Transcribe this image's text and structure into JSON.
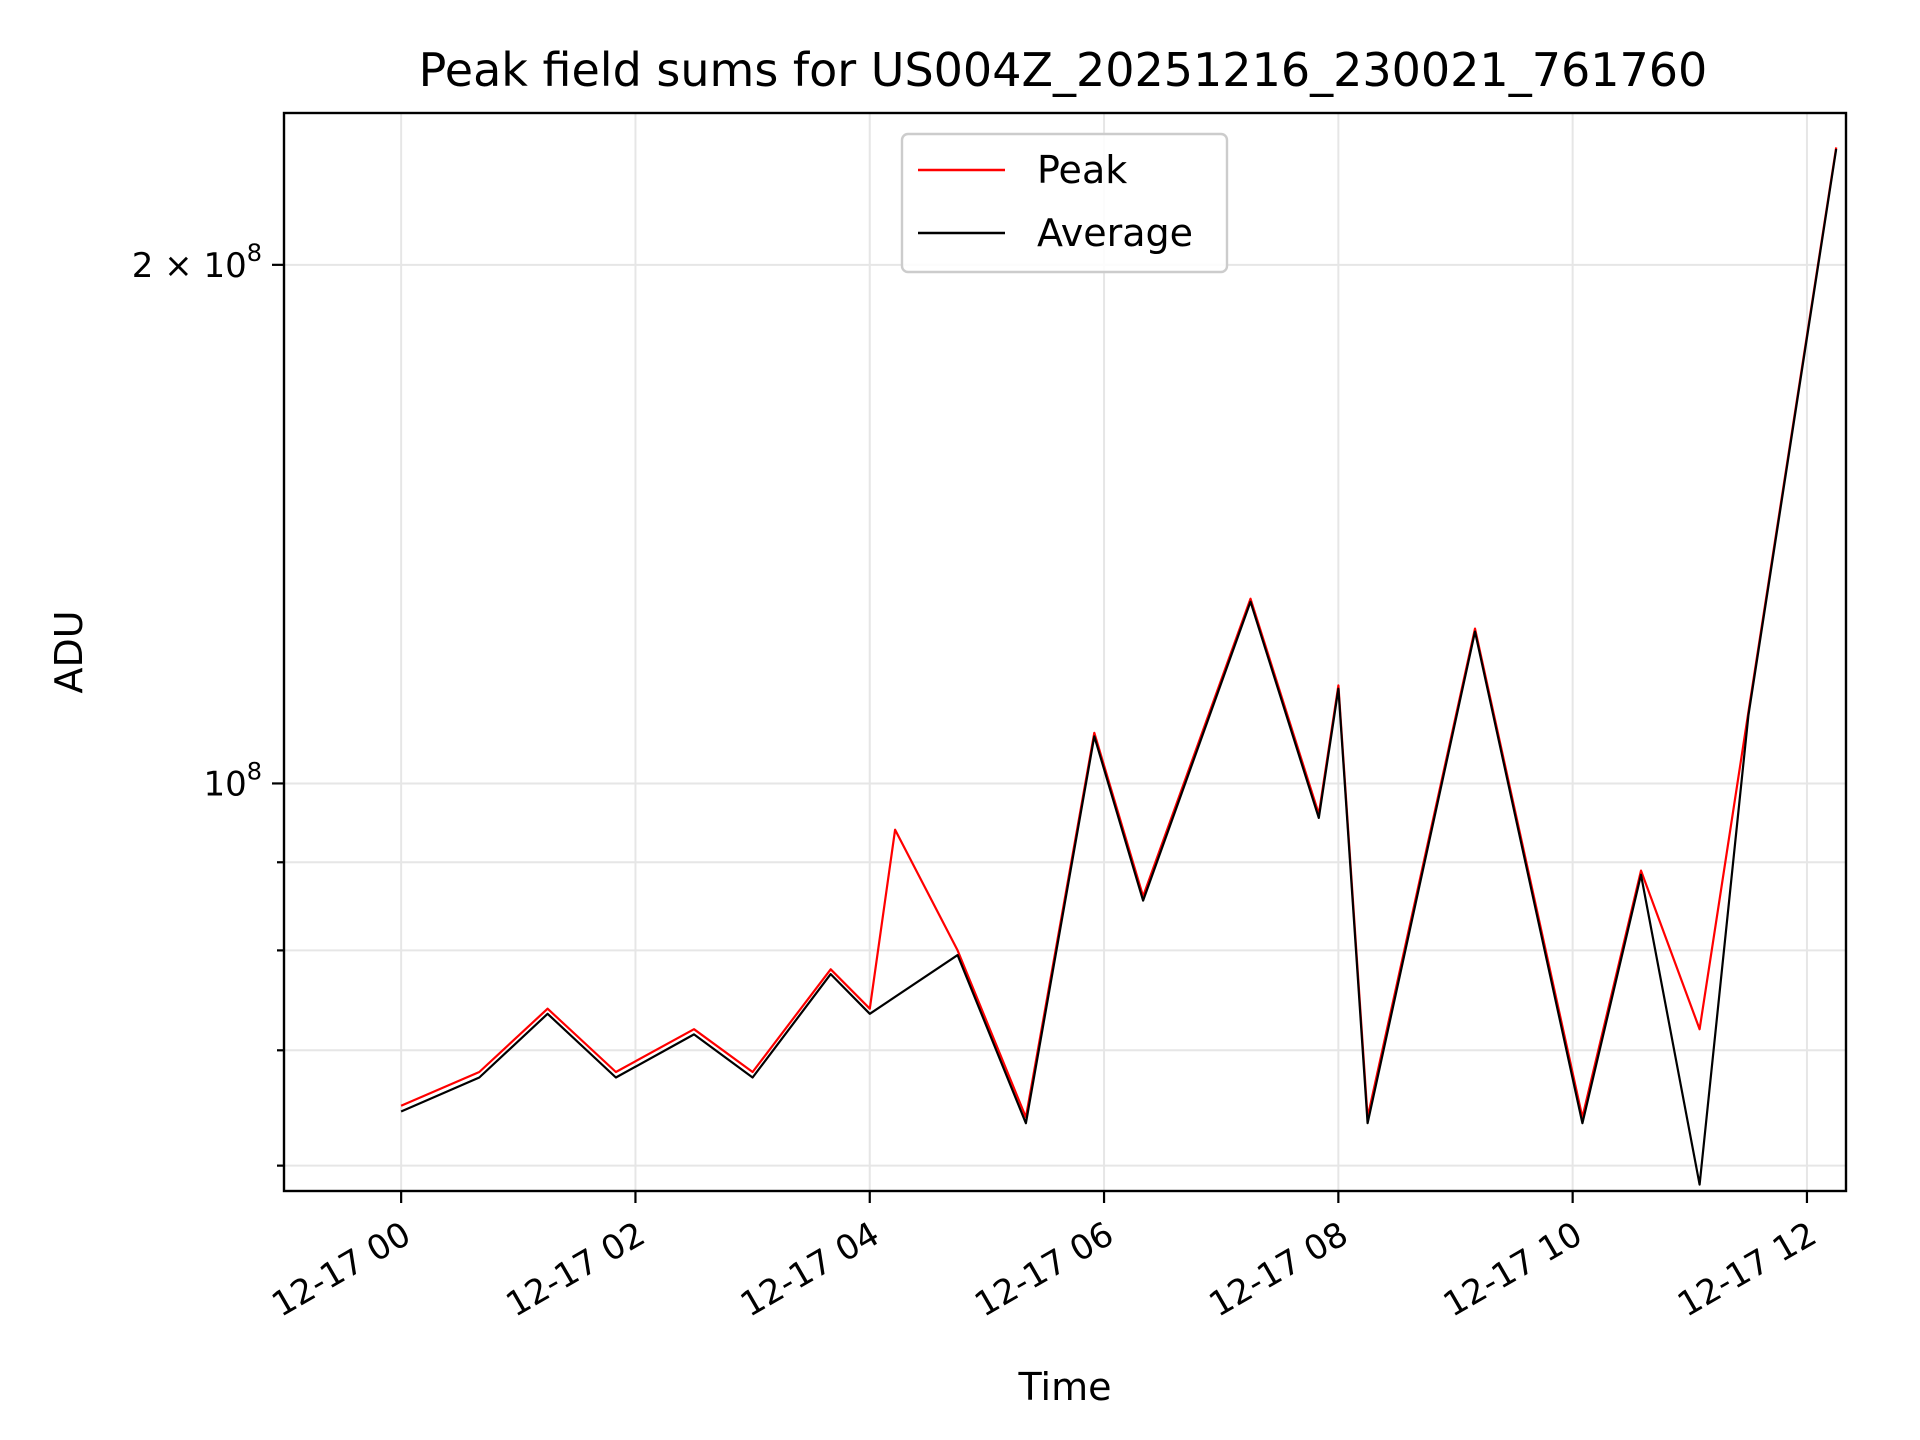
{
  "chart_data": {
    "type": "line",
    "title": "Peak field sums for US004Z_20251216_230021_761760",
    "xlabel": "Time",
    "ylabel": "ADU",
    "y_scale": "log",
    "grid": true,
    "legend_position": "upper-center",
    "x_domain": [
      "2025-12-16 23:00",
      "2025-12-17 12:20"
    ],
    "ylim": [
      58000000,
      245000000
    ],
    "x_ticks": [
      {
        "time": "2025-12-17 00:00",
        "label": "12-17 00"
      },
      {
        "time": "2025-12-17 02:00",
        "label": "12-17 02"
      },
      {
        "time": "2025-12-17 04:00",
        "label": "12-17 04"
      },
      {
        "time": "2025-12-17 06:00",
        "label": "12-17 06"
      },
      {
        "time": "2025-12-17 08:00",
        "label": "12-17 08"
      },
      {
        "time": "2025-12-17 10:00",
        "label": "12-17 10"
      },
      {
        "time": "2025-12-17 12:00",
        "label": "12-17 12"
      }
    ],
    "y_major_ticks": [
      {
        "value": 100000000,
        "base": "10",
        "exp": "8"
      },
      {
        "value": 200000000,
        "base": "2 × 10",
        "exp": "8"
      }
    ],
    "y_minor_ticks": [
      60000000,
      70000000,
      80000000,
      90000000
    ],
    "series": [
      {
        "name": "Peak",
        "color": "#ff0000",
        "points": [
          [
            "2025-12-17 00:00",
            65000000
          ],
          [
            "2025-12-17 00:40",
            68000000
          ],
          [
            "2025-12-17 01:15",
            74000000
          ],
          [
            "2025-12-17 01:50",
            68000000
          ],
          [
            "2025-12-17 02:30",
            72000000
          ],
          [
            "2025-12-17 03:00",
            68000000
          ],
          [
            "2025-12-17 03:40",
            78000000
          ],
          [
            "2025-12-17 04:00",
            74000000
          ],
          [
            "2025-12-17 04:13",
            94000000
          ],
          [
            "2025-12-17 04:45",
            80000000
          ],
          [
            "2025-12-17 05:20",
            64000000
          ],
          [
            "2025-12-17 05:55",
            107000000
          ],
          [
            "2025-12-17 06:20",
            86000000
          ],
          [
            "2025-12-17 07:15",
            128000000
          ],
          [
            "2025-12-17 07:50",
            96000000
          ],
          [
            "2025-12-17 08:00",
            114000000
          ],
          [
            "2025-12-17 08:15",
            64000000
          ],
          [
            "2025-12-17 09:10",
            123000000
          ],
          [
            "2025-12-17 10:05",
            64000000
          ],
          [
            "2025-12-17 10:35",
            89000000
          ],
          [
            "2025-12-17 11:05",
            72000000
          ],
          [
            "2025-12-17 11:30",
            110000000
          ],
          [
            "2025-12-17 12:15",
            234000000
          ]
        ]
      },
      {
        "name": "Average",
        "color": "#000000",
        "points": [
          [
            "2025-12-17 00:00",
            64500000
          ],
          [
            "2025-12-17 00:40",
            67500000
          ],
          [
            "2025-12-17 01:15",
            73500000
          ],
          [
            "2025-12-17 01:50",
            67500000
          ],
          [
            "2025-12-17 02:30",
            71500000
          ],
          [
            "2025-12-17 03:00",
            67500000
          ],
          [
            "2025-12-17 03:40",
            77500000
          ],
          [
            "2025-12-17 04:00",
            73500000
          ],
          [
            "2025-12-17 04:45",
            79500000
          ],
          [
            "2025-12-17 05:20",
            63500000
          ],
          [
            "2025-12-17 05:55",
            106500000
          ],
          [
            "2025-12-17 06:20",
            85500000
          ],
          [
            "2025-12-17 07:15",
            127500000
          ],
          [
            "2025-12-17 07:50",
            95500000
          ],
          [
            "2025-12-17 08:00",
            113500000
          ],
          [
            "2025-12-17 08:15",
            63500000
          ],
          [
            "2025-12-17 09:10",
            122500000
          ],
          [
            "2025-12-17 10:05",
            63500000
          ],
          [
            "2025-12-17 10:35",
            88500000
          ],
          [
            "2025-12-17 11:05",
            58500000
          ],
          [
            "2025-12-17 11:30",
            109500000
          ],
          [
            "2025-12-17 12:15",
            233500000
          ]
        ]
      }
    ]
  }
}
